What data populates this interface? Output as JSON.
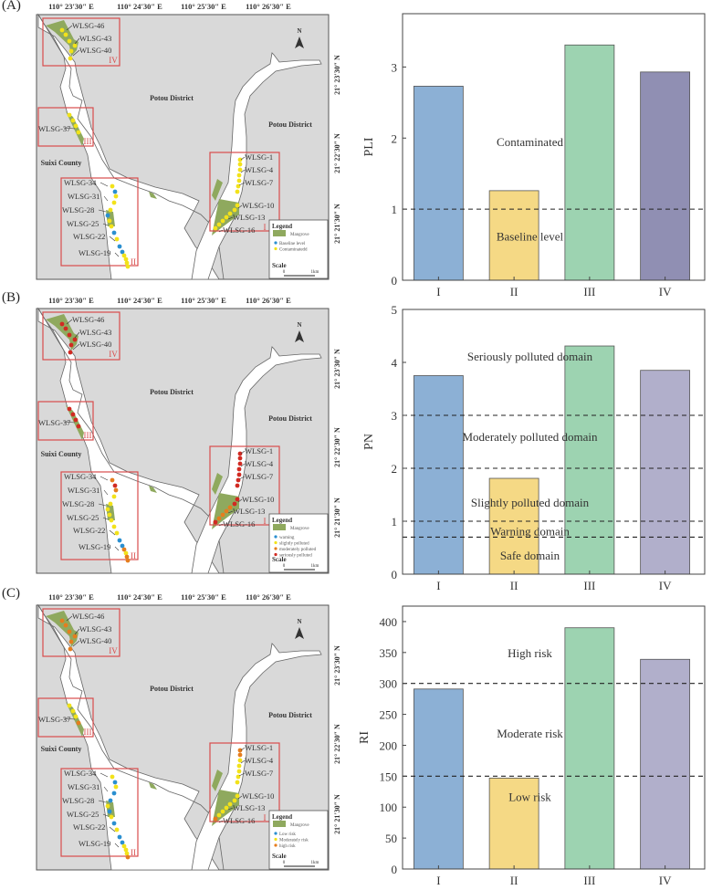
{
  "panels": [
    {
      "label": "(A)",
      "map": {
        "top_ticks": [
          "110°  23′30″ E",
          "110°  24′30″ E",
          "110°  25′30″ E",
          "110°  26′30″ E"
        ],
        "right_ticks": [
          "21°  23′30″ N",
          "21°  22′30″ N",
          "21°  21′30″ N"
        ],
        "districts": [
          "Potou District",
          "Potou District",
          "Suixi County"
        ],
        "regions": [
          "I",
          "II",
          "III",
          "IV"
        ],
        "sites": [
          "WLSG-46",
          "WLSG-43",
          "WLSG-40",
          "WLSG-37",
          "WLSG-34",
          "WLSG-31",
          "WLSG-28",
          "WLSG-25",
          "WLSG-22",
          "WLSG-19",
          "WLSG-1",
          "WLSG-4",
          "WLSG-7",
          "WLSG-10",
          "WLSG-13",
          "WLSG-16"
        ],
        "legend": {
          "title": "Legend",
          "items": [
            {
              "label": "Mangrove",
              "color": "#8fa95e",
              "shape": "rect"
            },
            {
              "label": "Baseline level",
              "color": "#2a8fd0",
              "shape": "dot"
            },
            {
              "label": "Contaminatedd",
              "color": "#f2e21a",
              "shape": "dot"
            }
          ],
          "scale_title": "Scale",
          "scale_start": "0",
          "scale_end": "1km"
        },
        "dot_colors": {
          "IV": [
            "#f2e21a",
            "#f2e21a",
            "#f2e21a",
            "#f2e21a",
            "#f2e21a",
            "#f2e21a"
          ],
          "III": [
            "#f2e21a",
            "#f2e21a",
            "#f2e21a",
            "#f2e21a"
          ],
          "II": [
            "#f2e21a",
            "#2a8fd0",
            "#f2e21a",
            "#f2e21a",
            "#f2e21a",
            "#2a8fd0",
            "#f2e21a",
            "#f2e21a",
            "#2a8fd0",
            "#f2e21a",
            "#2a8fd0",
            "#2a8fd0",
            "#f2e21a",
            "#f2e21a",
            "#f2e21a",
            "#f2e21a"
          ],
          "I": [
            "#f2e21a",
            "#f2e21a",
            "#f2e21a",
            "#f2e21a",
            "#f2e21a",
            "#f2e21a",
            "#f2e21a",
            "#f2e21a",
            "#f2e21a",
            "#f2e21a",
            "#f2e21a",
            "#f2e21a",
            "#f2e21a",
            "#f2e21a"
          ]
        }
      }
    },
    {
      "label": "(B)",
      "map": {
        "top_ticks": [
          "110°  23′30″ E",
          "110°  24′30″ E",
          "110°  25′30″ E",
          "110°  26′30″ E"
        ],
        "right_ticks": [
          "21°  23′30″ N",
          "21°  22′30″ N",
          "21°  21′30″ N"
        ],
        "districts": [
          "Potou District",
          "Potou District",
          "Suixi County"
        ],
        "regions": [
          "I",
          "II",
          "III",
          "IV"
        ],
        "sites": [
          "WLSG-46",
          "WLSG-43",
          "WLSG-40",
          "WLSG-37",
          "WLSG-34",
          "WLSG-31",
          "WLSG-28",
          "WLSG-25",
          "WLSG-22",
          "WLSG-19",
          "WLSG-1",
          "WLSG-4",
          "WLSG-7",
          "WLSG-10",
          "WLSG-13",
          "WLSG-16"
        ],
        "legend": {
          "title": "Legend",
          "items": [
            {
              "label": "Mangrove",
              "color": "#8fa95e",
              "shape": "rect"
            },
            {
              "label": "warning",
              "color": "#2a8fd0",
              "shape": "dot"
            },
            {
              "label": "slightly polluted",
              "color": "#f2e21a",
              "shape": "dot"
            },
            {
              "label": "moderately polluted",
              "color": "#e57d1e",
              "shape": "dot"
            },
            {
              "label": "seriously polluted",
              "color": "#d12a22",
              "shape": "dot"
            }
          ],
          "scale_title": "Scale",
          "scale_start": "0",
          "scale_end": "1km"
        },
        "dot_colors": {
          "IV": [
            "#d12a22",
            "#d12a22",
            "#d12a22",
            "#d12a22",
            "#d12a22",
            "#d12a22"
          ],
          "III": [
            "#d12a22",
            "#d12a22",
            "#d12a22",
            "#d12a22"
          ],
          "II": [
            "#e57d1e",
            "#d12a22",
            "#e57d1e",
            "#f2e21a",
            "#f2e21a",
            "#f2e21a",
            "#f2e21a",
            "#f2e21a",
            "#f2e21a",
            "#f2e21a",
            "#2a8fd0",
            "#2a8fd0",
            "#e57d1e",
            "#f2e21a",
            "#e57d1e",
            "#e57d1e"
          ],
          "I": [
            "#d12a22",
            "#d12a22",
            "#d12a22",
            "#d12a22",
            "#d12a22",
            "#d12a22",
            "#d12a22",
            "#d12a22",
            "#d12a22",
            "#e57d1e",
            "#e57d1e",
            "#e57d1e",
            "#e57d1e",
            "#d12a22"
          ]
        }
      }
    },
    {
      "label": "(C)",
      "map": {
        "top_ticks": [
          "110°  23′30″ E",
          "110°  24′30″ E",
          "110°  25′30″ E",
          "110°  26′30″ E"
        ],
        "right_ticks": [
          "21°  23′30″ N",
          "21°  22′30″ N",
          "21°  21′30″ N"
        ],
        "districts": [
          "Potou District",
          "Potou District",
          "Suixi County"
        ],
        "regions": [
          "I",
          "II",
          "III",
          "IV"
        ],
        "sites": [
          "WLSG-46",
          "WLSG-43",
          "WLSG-40",
          "WLSG-37",
          "WLSG-34",
          "WLSG-31",
          "WLSG-28",
          "WLSG-25",
          "WLSG-22",
          "WLSG-19",
          "WLSG-1",
          "WLSG-4",
          "WLSG-7",
          "WLSG-10",
          "WLSG-13",
          "WLSG-16"
        ],
        "legend": {
          "title": "Legend",
          "items": [
            {
              "label": "Mangrove",
              "color": "#8fa95e",
              "shape": "rect"
            },
            {
              "label": "Low risk",
              "color": "#2a8fd0",
              "shape": "dot"
            },
            {
              "label": "Moderately risk",
              "color": "#f2e21a",
              "shape": "dot"
            },
            {
              "label": "high risk",
              "color": "#e57d1e",
              "shape": "dot"
            }
          ],
          "scale_title": "Scale",
          "scale_start": "0",
          "scale_end": "1km"
        },
        "dot_colors": {
          "IV": [
            "#e57d1e",
            "#e57d1e",
            "#e57d1e",
            "#e57d1e",
            "#e57d1e",
            "#e57d1e"
          ],
          "III": [
            "#f2e21a",
            "#f2e21a",
            "#f2e21a",
            "#e57d1e"
          ],
          "II": [
            "#f2e21a",
            "#2a8fd0",
            "#f2e21a",
            "#2a8fd0",
            "#2a8fd0",
            "#f2e21a",
            "#2a8fd0",
            "#f2e21a",
            "#2a8fd0",
            "#f2e21a",
            "#2a8fd0",
            "#2a8fd0",
            "#f2e21a",
            "#f2e21a",
            "#f2e21a",
            "#e57d1e"
          ],
          "I": [
            "#e57d1e",
            "#e57d1e",
            "#f2e21a",
            "#f2e21a",
            "#f2e21a",
            "#f2e21a",
            "#f2e21a",
            "#f2e21a",
            "#f2e21a",
            "#f2e21a",
            "#f2e21a",
            "#f2e21a",
            "#f2e21a",
            "#e57d1e"
          ]
        }
      }
    }
  ],
  "chart_data": [
    {
      "type": "bar",
      "panel": "(A)",
      "categories": [
        "I",
        "II",
        "III",
        "IV"
      ],
      "values": [
        2.73,
        1.26,
        3.31,
        2.93
      ],
      "colors": [
        "#8cb0d5",
        "#f5d985",
        "#9dd3b1",
        "#908fb3"
      ],
      "ylabel": "PLI",
      "xlabel": "",
      "ylim": [
        0,
        3.75
      ],
      "yticks": [
        0,
        1,
        2,
        3
      ],
      "thresholds": [
        1
      ],
      "zone_labels": [
        {
          "text": "Contaminated",
          "y": 1.95
        },
        {
          "text": "Baseline level",
          "y": 0.62
        }
      ],
      "grid": false
    },
    {
      "type": "bar",
      "panel": "(B)",
      "categories": [
        "I",
        "II",
        "III",
        "IV"
      ],
      "values": [
        3.75,
        1.81,
        4.31,
        3.85
      ],
      "colors": [
        "#8cb0d5",
        "#f5d985",
        "#9dd3b1",
        "#b1afcb"
      ],
      "ylabel": "PN",
      "xlabel": "",
      "ylim": [
        0,
        5
      ],
      "yticks": [
        0,
        1,
        2,
        3,
        4,
        5
      ],
      "thresholds": [
        3,
        2,
        1,
        0.7
      ],
      "zone_labels": [
        {
          "text": "Seriously polluted domain",
          "y": 4.12
        },
        {
          "text": "Moderately polluted domain",
          "y": 2.6
        },
        {
          "text": "Slightly polluted domain",
          "y": 1.36
        },
        {
          "text": "Warning domain",
          "y": 0.82
        },
        {
          "text": "Safe domain",
          "y": 0.36
        }
      ],
      "grid": false
    },
    {
      "type": "bar",
      "panel": "(C)",
      "categories": [
        "I",
        "II",
        "III",
        "IV"
      ],
      "values": [
        291,
        147,
        390,
        339
      ],
      "colors": [
        "#8cb0d5",
        "#f5d985",
        "#9dd3b1",
        "#b1afcb"
      ],
      "ylabel": "RI",
      "xlabel": "",
      "ylim": [
        0,
        425
      ],
      "yticks": [
        0,
        50,
        100,
        150,
        200,
        250,
        300,
        350,
        400
      ],
      "thresholds": [
        300,
        150
      ],
      "zone_labels": [
        {
          "text": "High risk",
          "y": 350
        },
        {
          "text": "Moderate risk",
          "y": 220
        },
        {
          "text": "Low risk",
          "y": 117
        }
      ],
      "grid": false
    }
  ]
}
